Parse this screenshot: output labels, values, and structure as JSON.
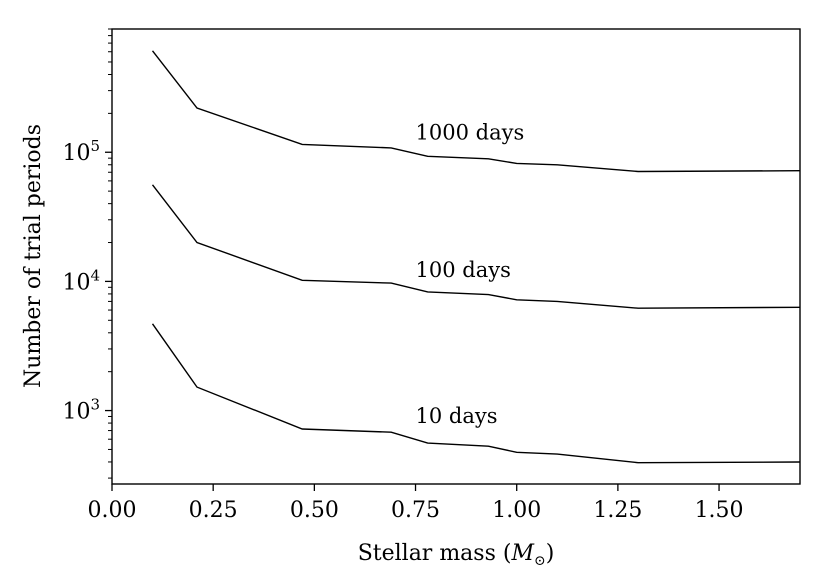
{
  "chart_data": {
    "type": "line",
    "title": "",
    "xlabel": "Stellar mass",
    "xlabel_symbol": "M",
    "xlabel_subscript": "⊙",
    "ylabel": "Number of trial periods",
    "xlim": [
      0.0,
      1.7
    ],
    "ylim": [
      270,
      900000
    ],
    "yscale": "log",
    "grid": false,
    "x_ticks": [
      {
        "value": 0.0,
        "label": "0.00"
      },
      {
        "value": 0.25,
        "label": "0.25"
      },
      {
        "value": 0.5,
        "label": "0.50"
      },
      {
        "value": 0.75,
        "label": "0.75"
      },
      {
        "value": 1.0,
        "label": "1.00"
      },
      {
        "value": 1.25,
        "label": "1.25"
      },
      {
        "value": 1.5,
        "label": "1.50"
      }
    ],
    "y_ticks": [
      {
        "value": 1000,
        "base": "10",
        "exp": "3"
      },
      {
        "value": 10000,
        "base": "10",
        "exp": "4"
      },
      {
        "value": 100000,
        "base": "10",
        "exp": "5"
      }
    ],
    "x": [
      0.1,
      0.21,
      0.47,
      0.69,
      0.78,
      0.93,
      1.0,
      1.1,
      1.3,
      1.7
    ],
    "series": [
      {
        "name": "1000 days",
        "values": [
          610000,
          220000,
          115000,
          108000,
          93000,
          89000,
          82000,
          80000,
          71000,
          72000
        ],
        "label_x": 0.75,
        "label_y": 125000
      },
      {
        "name": "100 days",
        "values": [
          56000,
          20000,
          10200,
          9700,
          8300,
          7900,
          7200,
          7000,
          6200,
          6300
        ],
        "label_x": 0.75,
        "label_y": 10800
      },
      {
        "name": "10 days",
        "values": [
          4700,
          1520,
          720,
          680,
          560,
          530,
          475,
          460,
          395,
          400
        ],
        "label_x": 0.75,
        "label_y": 800
      }
    ]
  }
}
